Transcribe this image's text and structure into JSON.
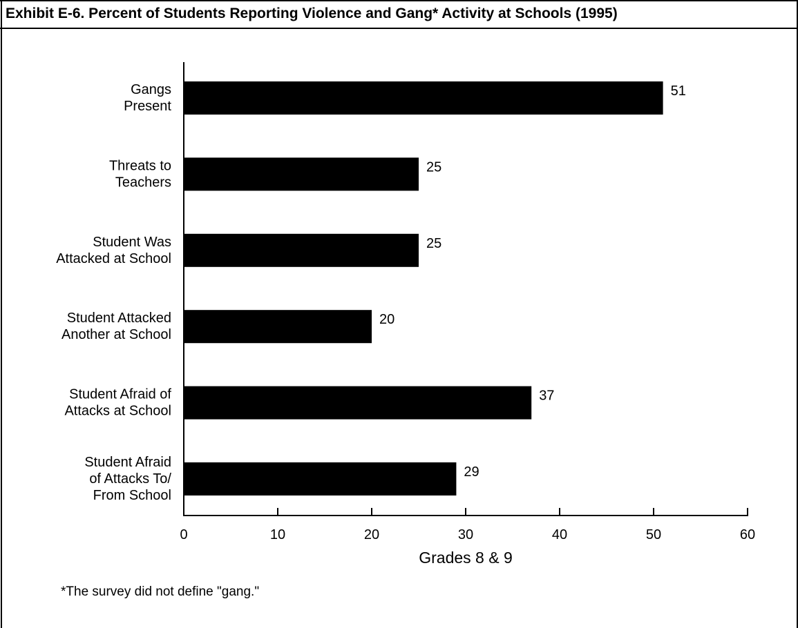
{
  "header": {
    "title": "Exhibit E-6. Percent of Students Reporting Violence and Gang* Activity at Schools (1995)"
  },
  "footnote": "*The survey did not define \"gang.\"",
  "chart_data": {
    "type": "bar",
    "orientation": "horizontal",
    "categories": [
      [
        "Gangs",
        "Present"
      ],
      [
        "Threats to",
        "Teachers"
      ],
      [
        "Student Was",
        "Attacked at School"
      ],
      [
        "Student Attacked",
        "Another at School"
      ],
      [
        "Student Afraid of",
        "Attacks at School"
      ],
      [
        "Student Afraid",
        "of Attacks To/",
        "From School"
      ]
    ],
    "values": [
      51,
      25,
      25,
      20,
      37,
      29
    ],
    "data_labels": [
      "51",
      "25",
      "25",
      "20",
      "37",
      "29"
    ],
    "xlabel": "Grades 8 & 9",
    "xlim": [
      0,
      60
    ],
    "xticks": [
      0,
      10,
      20,
      30,
      40,
      50,
      60
    ],
    "grid": false,
    "colors": {
      "bar": "#000000",
      "axis": "#000000"
    }
  }
}
